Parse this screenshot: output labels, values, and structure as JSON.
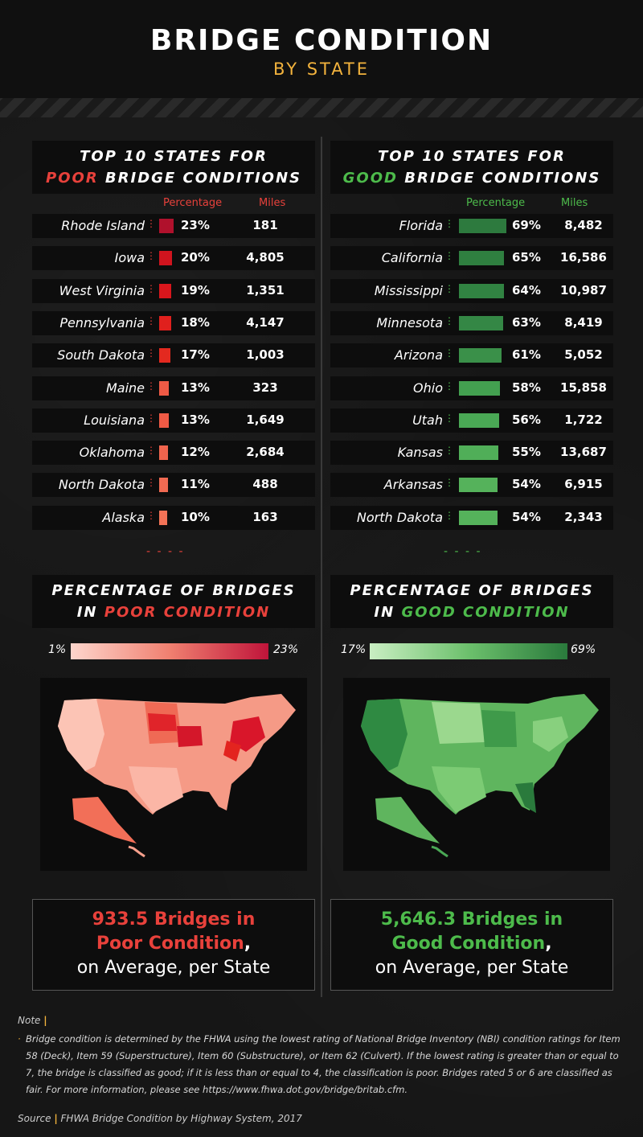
{
  "header": {
    "title": "BRIDGE CONDITION",
    "subtitle": "BY STATE"
  },
  "poor": {
    "heading_line1": "TOP 10 STATES FOR",
    "heading_accent": "POOR",
    "heading_rest": " BRIDGE CONDITIONS",
    "col_percentage": "Percentage",
    "col_miles": "Miles",
    "map_heading_line1": "PERCENTAGE OF BRIDGES",
    "map_heading_in": "IN ",
    "map_heading_accent": "POOR CONDITION",
    "legend_min": "1%",
    "legend_max": "23%",
    "stat_line1": "933.5 Bridges in",
    "stat_line2": "Poor Condition",
    "stat_comma": ",",
    "stat_line3": "on Average, per State"
  },
  "good": {
    "heading_line1": "TOP 10 STATES FOR",
    "heading_accent": "GOOD",
    "heading_rest": " BRIDGE CONDITIONS",
    "col_percentage": "Percentage",
    "col_miles": "Miles",
    "map_heading_line1": "PERCENTAGE OF BRIDGES",
    "map_heading_in": "IN ",
    "map_heading_accent": "GOOD CONDITION",
    "legend_min": "17%",
    "legend_max": "69%",
    "stat_line1": "5,646.3 Bridges in",
    "stat_line2": "Good Condition",
    "stat_comma": ",",
    "stat_line3": "on Average, per State"
  },
  "colors": {
    "poor_accent": "#e8413b",
    "good_accent": "#4dbb4b",
    "gold": "#f3b33d"
  },
  "chart_data": [
    {
      "type": "bar",
      "title": "TOP 10 STATES FOR POOR BRIDGE CONDITIONS",
      "categories": [
        "Rhode Island",
        "Iowa",
        "West Virginia",
        "Pennsylvania",
        "South Dakota",
        "Maine",
        "Louisiana",
        "Oklahoma",
        "North Dakota",
        "Alaska"
      ],
      "series": [
        {
          "name": "Percentage",
          "values": [
            23,
            20,
            19,
            18,
            17,
            13,
            13,
            12,
            11,
            10
          ],
          "labels": [
            "23%",
            "20%",
            "19%",
            "18%",
            "17%",
            "13%",
            "13%",
            "12%",
            "11%",
            "10%"
          ]
        },
        {
          "name": "Miles",
          "values": [
            181,
            4805,
            1351,
            4147,
            1003,
            323,
            1649,
            2684,
            488,
            163
          ],
          "labels": [
            "181",
            "4,805",
            "1,351",
            "4,147",
            "1,003",
            "323",
            "1,649",
            "2,684",
            "488",
            "163"
          ]
        }
      ],
      "bar_colors": [
        "#b0112c",
        "#d0141e",
        "#d9161c",
        "#e0201d",
        "#e3291f",
        "#ee5a45",
        "#ee5a45",
        "#f0644d",
        "#f06a52",
        "#f27256"
      ]
    },
    {
      "type": "bar",
      "title": "TOP 10 STATES FOR GOOD BRIDGE CONDITIONS",
      "categories": [
        "Florida",
        "California",
        "Mississippi",
        "Minnesota",
        "Arizona",
        "Ohio",
        "Utah",
        "Kansas",
        "Arkansas",
        "North Dakota"
      ],
      "series": [
        {
          "name": "Percentage",
          "values": [
            69,
            65,
            64,
            63,
            61,
            58,
            56,
            55,
            54,
            54
          ],
          "labels": [
            "69%",
            "65%",
            "64%",
            "63%",
            "61%",
            "58%",
            "56%",
            "55%",
            "54%",
            "54%"
          ]
        },
        {
          "name": "Miles",
          "values": [
            8482,
            16586,
            10987,
            8419,
            5052,
            15858,
            1722,
            13687,
            6915,
            2343
          ],
          "labels": [
            "8,482",
            "16,586",
            "10,987",
            "8,419",
            "5,052",
            "15,858",
            "1,722",
            "13,687",
            "6,915",
            "2,343"
          ]
        }
      ],
      "bar_colors": [
        "#2d7a3e",
        "#2f7f40",
        "#318342",
        "#348745",
        "#3a9049",
        "#43a050",
        "#4aa855",
        "#50ae58",
        "#55b25b",
        "#55b25b"
      ]
    }
  ],
  "note": {
    "label": "Note",
    "text": "Bridge condition is determined by the FHWA using the lowest rating of National Bridge Inventory (NBI) condition ratings for Item 58 (Deck), Item 59 (Superstructure), Item 60 (Substructure), or Item 62 (Culvert). If the lowest rating is greater than or equal to 7, the bridge is classified as good; if it is less than or equal to 4, the classification is poor. Bridges rated 5 or 6 are classified as fair. For more information, please see https://www.fhwa.dot.gov/bridge/britab.cfm.",
    "source_label": "Source",
    "source_text": "FHWA Bridge Condition by Highway System, 2017"
  }
}
